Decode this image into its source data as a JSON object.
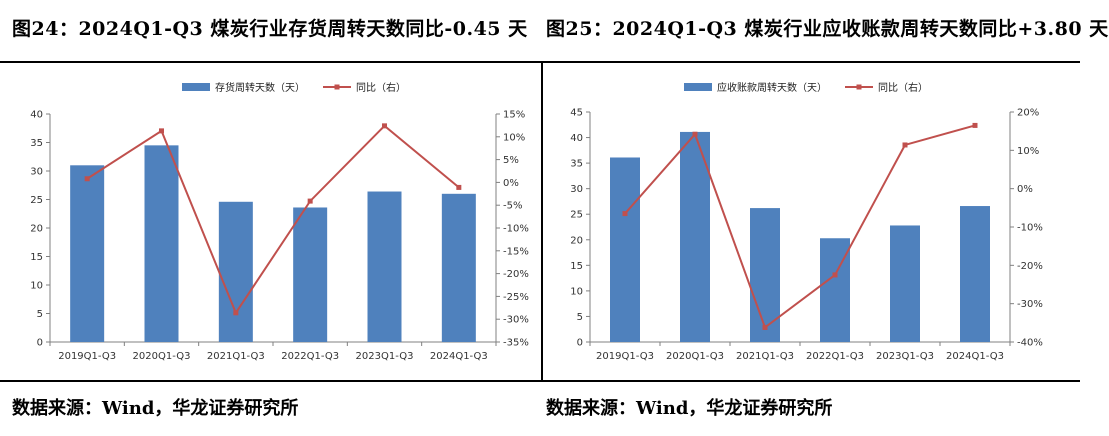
{
  "headings": {
    "left": "图24：2024Q1-Q3 煤炭行业存货周转天数同比-0.45 天",
    "right": "图25：2024Q1-Q3 煤炭行业应收账款周转天数同比+3.80 天"
  },
  "sources": {
    "left": "数据来源：Wind，华龙证券研究所",
    "right": "数据来源：Wind，华龙证券研究所"
  },
  "colors": {
    "bar": "#4f81bd",
    "line": "#c0504d",
    "axis": "#808080"
  },
  "chart_data": [
    {
      "type": "bar",
      "title": "图24：2024Q1-Q3 煤炭行业存货周转天数同比-0.45 天",
      "categories": [
        "2019Q1-Q3",
        "2020Q1-Q3",
        "2021Q1-Q3",
        "2022Q1-Q3",
        "2023Q1-Q3",
        "2024Q1-Q3"
      ],
      "series": [
        {
          "name": "存货周转天数（天）",
          "axis": "left",
          "kind": "bar",
          "values": [
            31.0,
            34.5,
            24.6,
            23.6,
            26.4,
            26.0
          ]
        },
        {
          "name": "同比（右）",
          "axis": "right",
          "kind": "line",
          "values": [
            0.8,
            11.3,
            -28.6,
            -4.1,
            12.4,
            -1.1
          ]
        }
      ],
      "ylim": [
        0,
        40
      ],
      "yticks": [
        "0",
        "5",
        "10",
        "15",
        "20",
        "25",
        "30",
        "35",
        "40"
      ],
      "y2lim": [
        -35,
        15
      ],
      "y2ticks": [
        "-35%",
        "-30%",
        "-25%",
        "-20%",
        "-15%",
        "-10%",
        "-5%",
        "0%",
        "5%",
        "10%",
        "15%"
      ],
      "legend": "top-center"
    },
    {
      "type": "bar",
      "title": "图25：2024Q1-Q3 煤炭行业应收账款周转天数同比+3.80 天",
      "categories": [
        "2019Q1-Q3",
        "2020Q1-Q3",
        "2021Q1-Q3",
        "2022Q1-Q3",
        "2023Q1-Q3",
        "2024Q1-Q3"
      ],
      "series": [
        {
          "name": "应收账款周转天数（天）",
          "axis": "left",
          "kind": "bar",
          "values": [
            36.1,
            41.1,
            26.2,
            20.3,
            22.8,
            26.6
          ]
        },
        {
          "name": "同比（右）",
          "axis": "right",
          "kind": "line",
          "values": [
            -6.5,
            14.2,
            -36.2,
            -22.5,
            11.4,
            16.5
          ]
        }
      ],
      "ylim": [
        0,
        45
      ],
      "yticks": [
        "0",
        "5",
        "10",
        "15",
        "20",
        "25",
        "30",
        "35",
        "40",
        "45"
      ],
      "y2lim": [
        -40,
        20
      ],
      "y2ticks": [
        "-40%",
        "-30%",
        "-20%",
        "-10%",
        "0%",
        "10%",
        "20%"
      ],
      "legend": "top-center"
    }
  ]
}
